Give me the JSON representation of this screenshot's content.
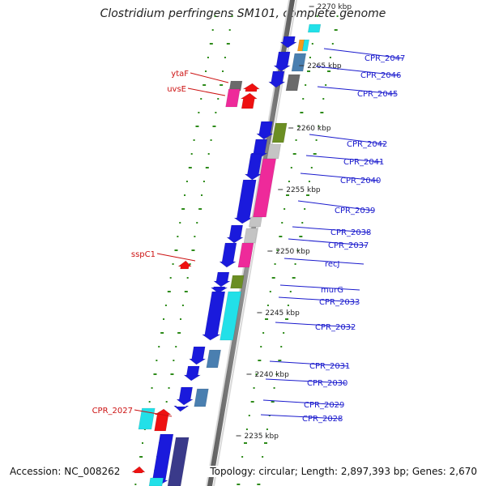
{
  "title": "Clostridium perfringens SM101, complete genome",
  "footer": {
    "accession": "Accession: NC_008262",
    "summary": "Topology: circular; Length: 2,897,393 bp; Genes: 2,670"
  },
  "colors": {
    "strand": "#888888",
    "gc_dots": "#2e8b1a",
    "gene_blue": "#1a1adc",
    "label_blue": "#1a1acd",
    "label_red": "#cc1111",
    "cyan": "#22e0e8",
    "magenta": "#ee2a9a",
    "olive": "#6b8e23",
    "steel": "#4a7fb0",
    "gray": "#6a6a6a",
    "light_gray": "#c4c4c4",
    "orange": "#f59a1a",
    "red": "#ee1111",
    "indigo": "#3a3a8a"
  },
  "ticks": [
    "2270 kbp",
    "2265 kbp",
    "2260 kbp",
    "2255 kbp",
    "2250 kbp",
    "2245 kbp",
    "2240 kbp",
    "2235 kbp"
  ],
  "labels_right": [
    "CPR_2047",
    "CPR_2046",
    "CPR_2045",
    "CPR_2042",
    "CPR_2041",
    "CPR_2040",
    "CPR_2039",
    "CPR_2038",
    "CPR_2037",
    "recJ",
    "murG",
    "CPR_2033",
    "CPR_2032",
    "CPR_2031",
    "CPR_2030",
    "CPR_2029",
    "CPR_2028"
  ],
  "labels_left": [
    "ytaF",
    "uvsE",
    "sspC1",
    "CPR_2027"
  ],
  "icons": {
    "forward_arrow": "down-arrow-icon",
    "reverse_arrow": "up-arrow-icon"
  }
}
